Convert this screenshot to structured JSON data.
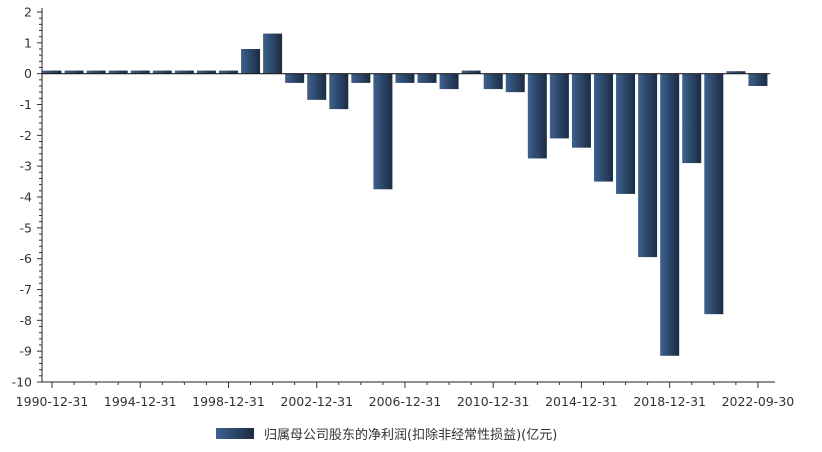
{
  "chart_data": {
    "type": "bar",
    "title": "",
    "xlabel": "",
    "ylabel": "",
    "ylim": [
      -10,
      2
    ],
    "yticks": [
      2,
      1,
      0,
      -1,
      -2,
      -3,
      -4,
      -5,
      -6,
      -7,
      -8,
      -9,
      -10
    ],
    "categories": [
      "1990-12-31",
      "1991-12-31",
      "1992-12-31",
      "1993-12-31",
      "1994-12-31",
      "1995-12-31",
      "1996-12-31",
      "1997-12-31",
      "1998-12-31",
      "1999-12-31",
      "2000-12-31",
      "2001-12-31",
      "2002-12-31",
      "2003-12-31",
      "2004-12-31",
      "2005-12-31",
      "2006-12-31",
      "2007-12-31",
      "2008-12-31",
      "2009-12-31",
      "2010-12-31",
      "2011-12-31",
      "2012-12-31",
      "2013-12-31",
      "2014-12-31",
      "2015-12-31",
      "2016-12-31",
      "2017-12-31",
      "2018-12-31",
      "2019-12-31",
      "2020-12-31",
      "2021-12-31",
      "2022-09-30"
    ],
    "xtick_labels": [
      "1990-12-31",
      "1994-12-31",
      "1998-12-31",
      "2002-12-31",
      "2006-12-31",
      "2010-12-31",
      "2014-12-31",
      "2018-12-31",
      "2022-09-30"
    ],
    "series": [
      {
        "name": "归属母公司股东的净利润(扣除非经常性损益)(亿元)",
        "values": [
          0.1,
          0.1,
          0.1,
          0.1,
          0.1,
          0.1,
          0.1,
          0.1,
          0.1,
          0.8,
          1.3,
          -0.3,
          -0.85,
          -1.15,
          -0.3,
          -3.75,
          -0.3,
          -0.3,
          -0.5,
          0.1,
          -0.5,
          -0.6,
          -2.75,
          -2.1,
          -2.4,
          -3.5,
          -3.9,
          -5.95,
          -9.15,
          -2.9,
          -7.8,
          0.08,
          -0.4
        ]
      }
    ],
    "grid": false,
    "legend_position": "bottom",
    "colors": {
      "bar_light": "#3d6190",
      "bar_dark": "#1c2b40"
    }
  }
}
